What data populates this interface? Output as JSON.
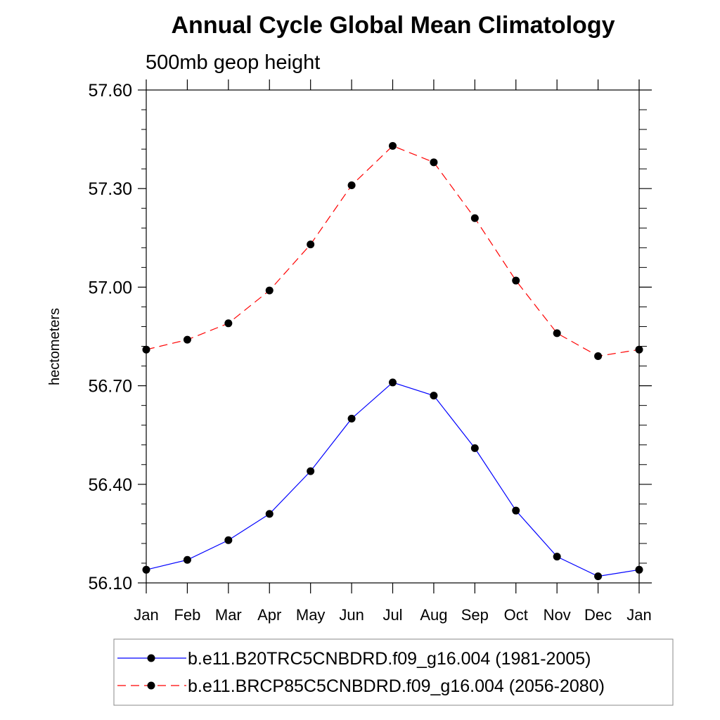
{
  "chart_data": {
    "type": "line",
    "title": "Annual Cycle Global Mean Climatology",
    "subtitle": "500mb geop height",
    "ylabel": "hectometers",
    "xlabel": "",
    "categories": [
      "Jan",
      "Feb",
      "Mar",
      "Apr",
      "May",
      "Jun",
      "Jul",
      "Aug",
      "Sep",
      "Oct",
      "Nov",
      "Dec",
      "Jan"
    ],
    "yticks": [
      "56.10",
      "56.40",
      "56.70",
      "57.00",
      "57.30",
      "57.60"
    ],
    "ylim": [
      56.1,
      57.6
    ],
    "grid": false,
    "legend_position": "bottom",
    "series": [
      {
        "name": "b.e11.B20TRC5CNBDRD.f09_g16.004 (1981-2005)",
        "color": "#0000ff",
        "dash": "solid",
        "marker": "filled-circle",
        "values": [
          56.14,
          56.17,
          56.23,
          56.31,
          56.44,
          56.6,
          56.71,
          56.67,
          56.51,
          56.32,
          56.18,
          56.12,
          56.14
        ]
      },
      {
        "name": "b.e11.BRCP85C5CNBDRD.f09_g16.004 (2056-2080)",
        "color": "#ff0000",
        "dash": "dashed",
        "marker": "filled-circle",
        "values": [
          56.81,
          56.84,
          56.89,
          56.99,
          57.13,
          57.31,
          57.43,
          57.38,
          57.21,
          57.02,
          56.86,
          56.79,
          56.81
        ]
      }
    ]
  }
}
